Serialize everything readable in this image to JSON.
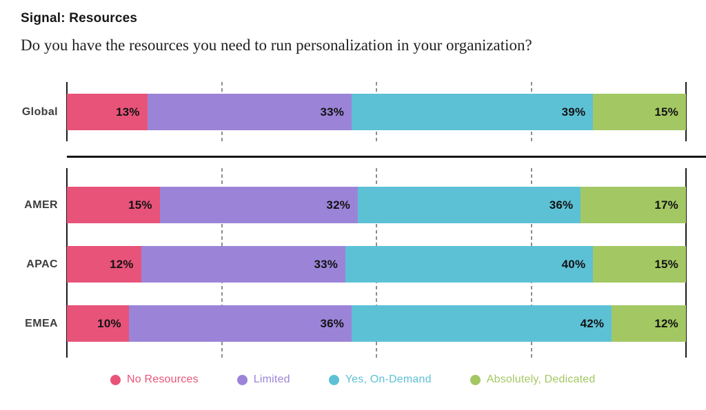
{
  "header": {
    "kicker": "Signal: Resources",
    "question": "Do you have the resources you need to run personalization in your organization?"
  },
  "chart_data": {
    "type": "bar",
    "orientation": "horizontal",
    "stacked": true,
    "unit": "%",
    "xlim": [
      0,
      100
    ],
    "gridlines_pct": [
      25,
      50,
      75
    ],
    "series_names": [
      "No Resources",
      "Limited",
      "Yes, On-Demand",
      "Absolutely, Dedicated"
    ],
    "groups": [
      {
        "name": "global",
        "rows": [
          {
            "category": "Global",
            "values": [
              13,
              33,
              39,
              15
            ]
          }
        ]
      },
      {
        "name": "regional",
        "rows": [
          {
            "category": "AMER",
            "values": [
              15,
              32,
              36,
              17
            ]
          },
          {
            "category": "APAC",
            "values": [
              12,
              33,
              40,
              15
            ]
          },
          {
            "category": "EMEA",
            "values": [
              10,
              36,
              42,
              12
            ]
          }
        ]
      }
    ]
  },
  "legend": {
    "items": [
      {
        "label": "No Resources",
        "color": "#E8537A"
      },
      {
        "label": "Limited",
        "color": "#9B84D8"
      },
      {
        "label": "Yes, On-Demand",
        "color": "#5DC1D6"
      },
      {
        "label": "Absolutely, Dedicated",
        "color": "#A3C863"
      }
    ]
  },
  "colors": {
    "axis": "#1a1a1a",
    "gridline": "#8d8d8d",
    "separator": "#1c1c1c",
    "value_label": "#121212",
    "row_label": "#3d3d3d"
  }
}
